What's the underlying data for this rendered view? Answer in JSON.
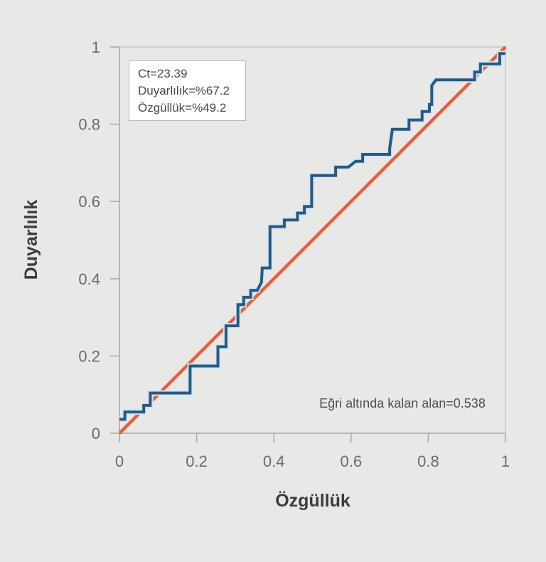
{
  "page": {
    "background_color": "#e8e8e7"
  },
  "chart_data": {
    "type": "line",
    "subtype": "roc_curve",
    "title": "",
    "xlabel": "Özgüllük",
    "ylabel": "Duyarlılık",
    "xlim": [
      0,
      1
    ],
    "ylim": [
      0,
      1
    ],
    "xtick_values": [
      0,
      0.2,
      0.4,
      0.6,
      0.8,
      1
    ],
    "xtick_labels": [
      "0",
      "0.2",
      "0.4",
      "0.6",
      "0.8",
      "1"
    ],
    "ytick_values": [
      0,
      0.2,
      0.4,
      0.6,
      0.8,
      1
    ],
    "ytick_labels": [
      "0",
      "0.2",
      "0.4",
      "0.6",
      "0.8",
      "1"
    ],
    "grid": false,
    "legend": "none",
    "auc": 0.538,
    "auc_label": "Eğri altında kalan alan=0.538",
    "cutoff": {
      "ct": 23.39,
      "sensitivity_pct": 67.2,
      "specificity_pct": 49.2
    },
    "annotation_box": {
      "lines": [
        "Ct=23.39",
        "Duyarlılık=%67.2",
        "Özgüllük=%49.2"
      ]
    },
    "series": [
      {
        "name": "ROC step curve",
        "type": "step",
        "color": "#1f5c8a",
        "halo_color": "#dde4e9",
        "points": [
          [
            0.0,
            0.036
          ],
          [
            0.014,
            0.036
          ],
          [
            0.014,
            0.055
          ],
          [
            0.063,
            0.055
          ],
          [
            0.063,
            0.072
          ],
          [
            0.08,
            0.072
          ],
          [
            0.08,
            0.104
          ],
          [
            0.183,
            0.104
          ],
          [
            0.183,
            0.174
          ],
          [
            0.255,
            0.174
          ],
          [
            0.255,
            0.224
          ],
          [
            0.276,
            0.224
          ],
          [
            0.276,
            0.278
          ],
          [
            0.307,
            0.278
          ],
          [
            0.307,
            0.333
          ],
          [
            0.322,
            0.333
          ],
          [
            0.322,
            0.352
          ],
          [
            0.34,
            0.352
          ],
          [
            0.34,
            0.37
          ],
          [
            0.357,
            0.37
          ],
          [
            0.368,
            0.391
          ],
          [
            0.37,
            0.428
          ],
          [
            0.39,
            0.428
          ],
          [
            0.39,
            0.535
          ],
          [
            0.427,
            0.535
          ],
          [
            0.427,
            0.552
          ],
          [
            0.461,
            0.552
          ],
          [
            0.461,
            0.57
          ],
          [
            0.479,
            0.57
          ],
          [
            0.479,
            0.587
          ],
          [
            0.498,
            0.587
          ],
          [
            0.498,
            0.667
          ],
          [
            0.56,
            0.667
          ],
          [
            0.56,
            0.689
          ],
          [
            0.593,
            0.689
          ],
          [
            0.612,
            0.704
          ],
          [
            0.63,
            0.704
          ],
          [
            0.63,
            0.722
          ],
          [
            0.7,
            0.722
          ],
          [
            0.7,
            0.737
          ],
          [
            0.707,
            0.787
          ],
          [
            0.75,
            0.787
          ],
          [
            0.75,
            0.811
          ],
          [
            0.784,
            0.811
          ],
          [
            0.784,
            0.833
          ],
          [
            0.803,
            0.833
          ],
          [
            0.803,
            0.851
          ],
          [
            0.809,
            0.851
          ],
          [
            0.809,
            0.9
          ],
          [
            0.82,
            0.915
          ],
          [
            0.92,
            0.915
          ],
          [
            0.92,
            0.935
          ],
          [
            0.935,
            0.935
          ],
          [
            0.935,
            0.956
          ],
          [
            0.985,
            0.956
          ],
          [
            0.985,
            0.983
          ],
          [
            1.0,
            0.983
          ]
        ]
      },
      {
        "name": "reference diagonal",
        "type": "line",
        "color": "#e45e3a",
        "points": [
          [
            0,
            0
          ],
          [
            1,
            1
          ]
        ]
      }
    ]
  }
}
